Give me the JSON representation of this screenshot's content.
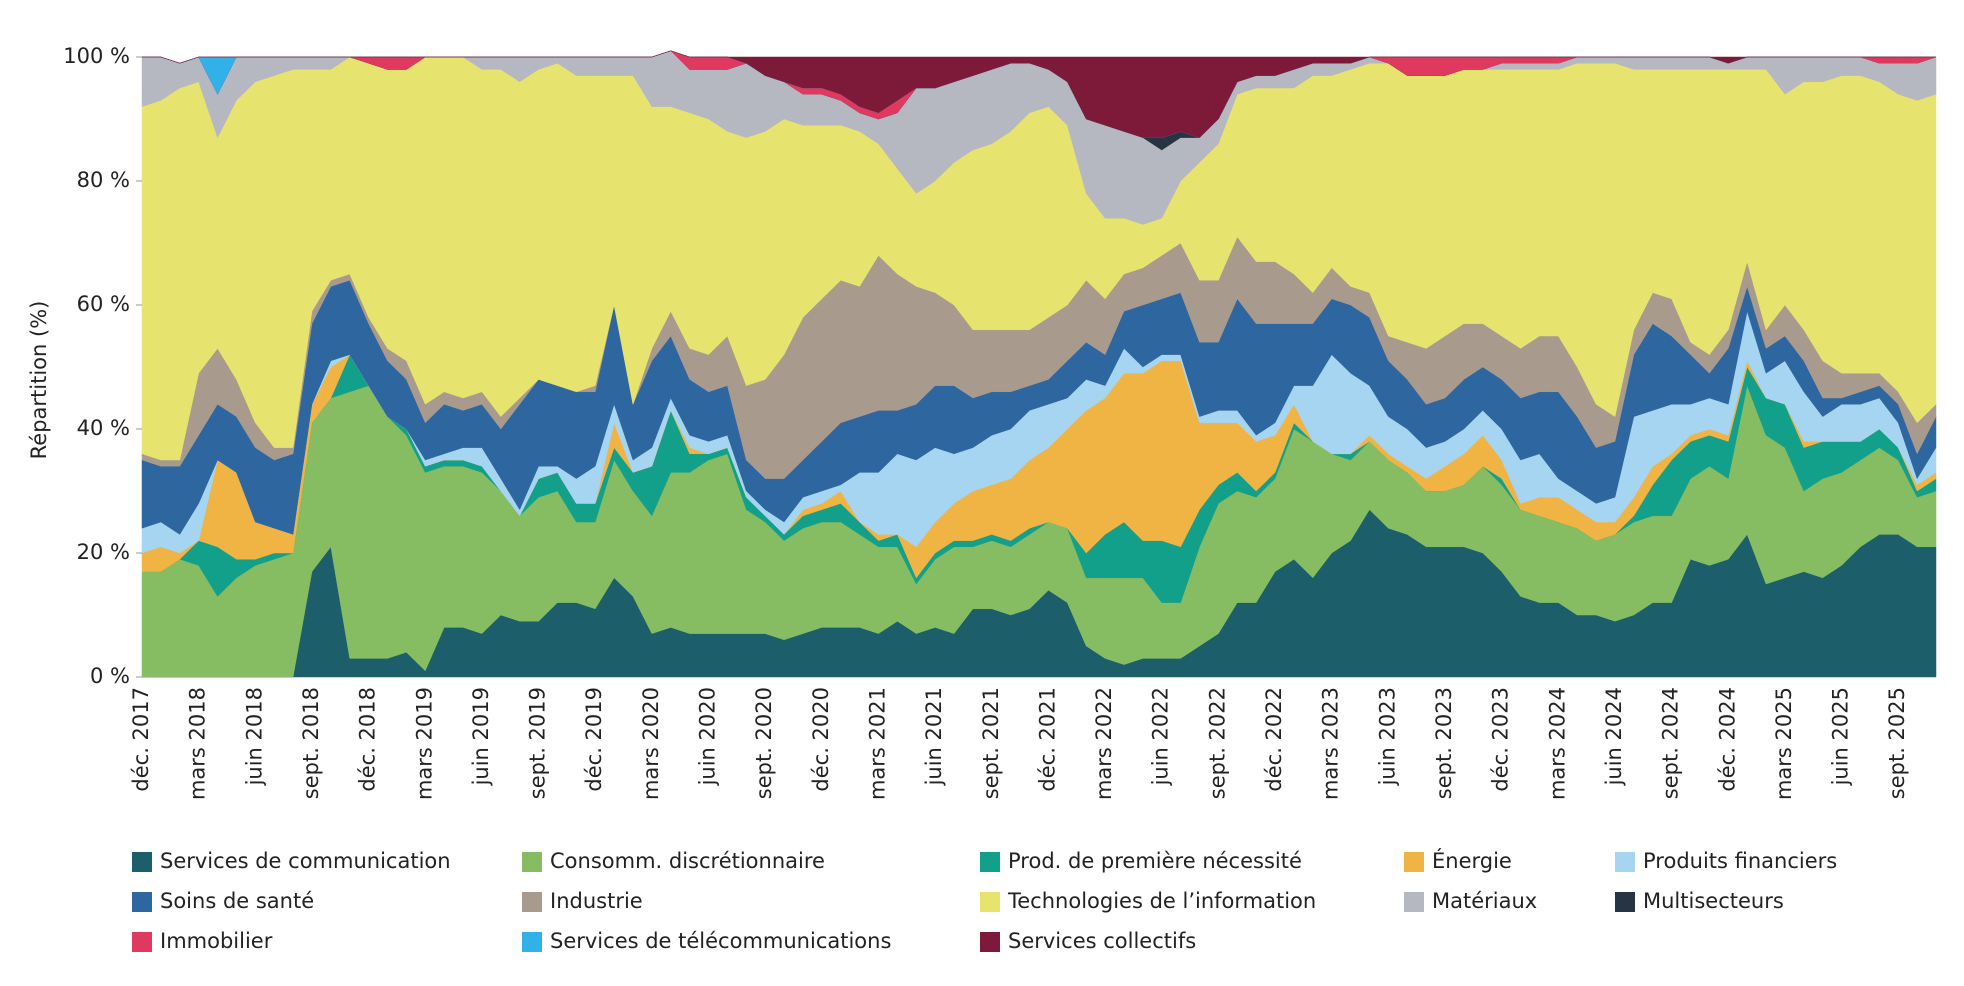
{
  "chart_data": {
    "type": "stacked_area",
    "y_label": "Répartition (%)",
    "categories": [
      "déc. 2017",
      null,
      null,
      "mars 2018",
      null,
      null,
      "juin 2018",
      null,
      null,
      "sept. 2018",
      null,
      null,
      "déc. 2018",
      null,
      null,
      "mars 2019",
      null,
      null,
      "juin 2019",
      null,
      null,
      "sept. 2019",
      null,
      null,
      "déc. 2019",
      null,
      null,
      "mars 2020",
      null,
      null,
      "juin 2020",
      null,
      null,
      "sept. 2020",
      null,
      null,
      "déc. 2020",
      null,
      null,
      "mars 2021",
      null,
      null,
      "juin 2021",
      null,
      null,
      "sept. 2021",
      null,
      null,
      "déc. 2021",
      null,
      null,
      "mars 2022",
      null,
      null,
      "juin 2022",
      null,
      null,
      "sept. 2022",
      null,
      null,
      "déc. 2022",
      null,
      null,
      "mars 2023",
      null,
      null,
      "juin 2023",
      null,
      null,
      "sept. 2023",
      null,
      null,
      "déc. 2023",
      null,
      null,
      "mars 2024",
      null,
      null,
      "juin 2024",
      null,
      null,
      "sept. 2024",
      null,
      null,
      "déc. 2024",
      null,
      null,
      "mars 2025",
      null,
      null,
      "juin 2025",
      null,
      null,
      "sept. 2025",
      null,
      null
    ],
    "ylim": [
      0,
      100
    ],
    "yticks": [
      {
        "value": 0,
        "label": "0 %"
      },
      {
        "value": 20,
        "label": "20 %"
      },
      {
        "value": 40,
        "label": "40 %"
      },
      {
        "value": 60,
        "label": "60 %"
      },
      {
        "value": 80,
        "label": "80 %"
      },
      {
        "value": 100,
        "label": "100 %"
      }
    ],
    "legend_columns": 5,
    "series": [
      {
        "name": "Services de communication",
        "color": "#1c5f6b",
        "values": [
          0,
          0,
          0,
          0,
          0,
          0,
          0,
          0,
          0,
          17,
          21,
          3,
          3,
          3,
          4,
          1,
          8,
          8,
          7,
          10,
          9,
          9,
          12,
          12,
          11,
          16,
          13,
          7,
          8,
          7,
          7,
          7,
          7,
          7,
          6,
          7,
          8,
          8,
          8,
          7,
          9,
          7,
          8,
          7,
          11,
          11,
          10,
          11,
          14,
          12,
          5,
          3,
          2,
          3,
          3,
          3,
          5,
          7,
          12,
          12,
          17,
          19,
          16,
          20,
          22,
          27,
          24,
          23,
          21,
          21,
          21,
          20,
          17,
          13,
          12,
          12,
          10,
          10,
          9,
          10,
          12,
          12,
          19,
          18,
          19,
          23,
          15,
          16,
          17,
          16,
          18,
          21,
          23,
          23,
          21,
          21
        ]
      },
      {
        "name": "Consomm. discrétionnaire",
        "color": "#86bc62",
        "values": [
          17,
          17,
          19,
          18,
          13,
          16,
          18,
          19,
          20,
          24,
          24,
          43,
          44,
          39,
          35,
          32,
          26,
          26,
          26,
          20,
          17,
          20,
          18,
          13,
          14,
          19,
          17,
          19,
          25,
          26,
          28,
          29,
          20,
          18,
          16,
          17,
          17,
          17,
          15,
          14,
          12,
          8,
          11,
          14,
          10,
          11,
          11,
          12,
          11,
          12,
          11,
          13,
          14,
          13,
          9,
          9,
          16,
          21,
          18,
          17,
          15,
          21,
          22,
          16,
          13,
          11,
          11,
          10,
          9,
          9,
          10,
          14,
          14,
          14,
          14,
          13,
          14,
          12,
          14,
          15,
          14,
          14,
          13,
          16,
          13,
          24,
          24,
          21,
          13,
          16,
          15,
          14,
          14,
          12,
          8,
          9
        ]
      },
      {
        "name": "Prod. de première nécessité",
        "color": "#13a08a",
        "values": [
          0,
          0,
          0,
          4,
          8,
          3,
          1,
          1,
          0,
          0,
          0,
          6,
          0,
          0,
          1,
          1,
          1,
          1,
          1,
          0,
          0,
          3,
          3,
          3,
          3,
          2,
          3,
          8,
          10,
          3,
          1,
          1,
          2,
          1,
          1,
          2,
          2,
          3,
          2,
          1,
          2,
          1,
          1,
          1,
          1,
          1,
          1,
          1,
          0,
          0,
          4,
          7,
          9,
          6,
          10,
          9,
          6,
          3,
          3,
          1,
          1,
          1,
          0,
          0,
          1,
          0,
          0,
          0,
          0,
          0,
          0,
          0,
          1,
          0,
          0,
          0,
          0,
          0,
          0,
          1,
          5,
          9,
          6,
          5,
          6,
          3,
          6,
          7,
          7,
          6,
          5,
          3,
          3,
          2,
          1,
          2
        ]
      },
      {
        "name": "Énergie",
        "color": "#f0b445",
        "values": [
          3,
          4,
          1,
          0,
          14,
          14,
          6,
          4,
          3,
          3,
          5,
          0,
          0,
          0,
          0,
          0,
          0,
          0,
          0,
          0,
          0,
          0,
          0,
          0,
          0,
          4,
          0,
          0,
          0,
          1,
          0,
          0,
          0,
          0,
          0,
          1,
          1,
          2,
          0,
          1,
          0,
          5,
          5,
          6,
          8,
          8,
          10,
          11,
          12,
          16,
          23,
          22,
          24,
          27,
          29,
          30,
          14,
          10,
          8,
          8,
          6,
          3,
          0,
          0,
          0,
          1,
          1,
          1,
          2,
          4,
          5,
          5,
          3,
          1,
          3,
          4,
          3,
          3,
          2,
          3,
          3,
          1,
          1,
          1,
          1,
          1,
          0,
          0,
          1,
          0,
          0,
          0,
          0,
          0,
          1,
          1
        ]
      },
      {
        "name": "Produits financiers",
        "color": "#a5d5f1",
        "values": [
          4,
          4,
          3,
          6,
          0,
          0,
          0,
          0,
          0,
          0,
          1,
          0,
          0,
          0,
          0,
          1,
          1,
          2,
          3,
          2,
          1,
          2,
          1,
          4,
          6,
          3,
          2,
          3,
          2,
          2,
          2,
          2,
          1,
          1,
          2,
          2,
          2,
          1,
          8,
          10,
          13,
          14,
          12,
          8,
          7,
          8,
          8,
          8,
          7,
          5,
          5,
          2,
          4,
          1,
          1,
          1,
          1,
          2,
          2,
          1,
          2,
          3,
          9,
          16,
          13,
          8,
          6,
          6,
          5,
          4,
          4,
          4,
          5,
          7,
          7,
          3,
          3,
          3,
          4,
          13,
          9,
          8,
          5,
          5,
          5,
          8,
          4,
          7,
          8,
          4,
          6,
          6,
          5,
          4,
          1,
          4
        ]
      },
      {
        "name": "Soins de santé",
        "color": "#2e66a0",
        "values": [
          11,
          9,
          11,
          11,
          9,
          9,
          12,
          11,
          13,
          13,
          12,
          12,
          10,
          9,
          8,
          6,
          8,
          6,
          7,
          8,
          17,
          14,
          13,
          14,
          12,
          16,
          9,
          14,
          10,
          9,
          8,
          8,
          5,
          5,
          7,
          6,
          8,
          10,
          9,
          10,
          7,
          9,
          10,
          11,
          8,
          7,
          6,
          4,
          4,
          6,
          6,
          5,
          6,
          10,
          9,
          10,
          12,
          11,
          18,
          18,
          16,
          10,
          10,
          9,
          11,
          11,
          9,
          8,
          7,
          7,
          8,
          7,
          8,
          10,
          10,
          14,
          12,
          9,
          9,
          10,
          14,
          11,
          8,
          4,
          9,
          4,
          4,
          4,
          5,
          3,
          1,
          2,
          2,
          3,
          4,
          5
        ]
      },
      {
        "name": "Industrie",
        "color": "#a89a8d",
        "values": [
          1,
          1,
          1,
          10,
          9,
          6,
          4,
          2,
          1,
          2,
          1,
          1,
          1,
          2,
          3,
          3,
          2,
          2,
          2,
          2,
          1,
          0,
          0,
          0,
          1,
          0,
          0,
          2,
          4,
          5,
          6,
          8,
          12,
          16,
          20,
          23,
          23,
          23,
          21,
          25,
          22,
          19,
          15,
          13,
          11,
          10,
          10,
          9,
          10,
          9,
          10,
          9,
          6,
          6,
          7,
          8,
          10,
          10,
          10,
          10,
          10,
          8,
          5,
          5,
          3,
          4,
          4,
          6,
          9,
          10,
          9,
          7,
          7,
          8,
          9,
          9,
          8,
          7,
          4,
          4,
          5,
          6,
          2,
          3,
          3,
          4,
          3,
          5,
          5,
          6,
          4,
          3,
          2,
          2,
          5,
          2
        ]
      },
      {
        "name": "Technologies de l’information",
        "color": "#e6e46e",
        "values": [
          56,
          58,
          60,
          47,
          34,
          45,
          55,
          60,
          61,
          39,
          34,
          35,
          41,
          45,
          47,
          56,
          54,
          55,
          52,
          56,
          51,
          50,
          52,
          51,
          50,
          37,
          53,
          39,
          33,
          38,
          38,
          33,
          40,
          40,
          38,
          31,
          28,
          25,
          25,
          18,
          17,
          15,
          18,
          23,
          29,
          30,
          32,
          35,
          34,
          29,
          14,
          13,
          9,
          7,
          6,
          10,
          19,
          22,
          23,
          28,
          28,
          30,
          35,
          31,
          35,
          37,
          44,
          43,
          44,
          42,
          41,
          41,
          43,
          45,
          43,
          43,
          49,
          55,
          57,
          42,
          36,
          37,
          44,
          46,
          42,
          31,
          42,
          34,
          40,
          45,
          48,
          48,
          47,
          48,
          52,
          50
        ]
      },
      {
        "name": "Matériaux",
        "color": "#b5b8c0",
        "values": [
          8,
          7,
          4,
          4,
          7,
          7,
          4,
          3,
          2,
          2,
          2,
          0,
          0,
          0,
          0,
          0,
          0,
          0,
          2,
          2,
          4,
          2,
          1,
          3,
          3,
          3,
          3,
          8,
          9,
          7,
          8,
          10,
          12,
          9,
          6,
          5,
          5,
          4,
          3,
          4,
          9,
          17,
          15,
          13,
          12,
          12,
          11,
          8,
          6,
          7,
          12,
          15,
          14,
          14,
          11,
          7,
          4,
          4,
          2,
          2,
          2,
          3,
          2,
          2,
          1,
          1,
          0,
          0,
          0,
          0,
          0,
          0,
          1,
          1,
          1,
          1,
          1,
          1,
          1,
          2,
          2,
          2,
          2,
          2,
          1,
          2,
          2,
          6,
          4,
          4,
          3,
          3,
          3,
          5,
          6,
          6
        ]
      },
      {
        "name": "Multisecteurs",
        "color": "#263444",
        "values": [
          0,
          0,
          0,
          0,
          0,
          0,
          0,
          0,
          0,
          0,
          0,
          0,
          0,
          0,
          0,
          0,
          0,
          0,
          0,
          0,
          0,
          0,
          0,
          0,
          0,
          0,
          0,
          0,
          0,
          0,
          0,
          0,
          0,
          0,
          0,
          0,
          0,
          0,
          0,
          0,
          0,
          0,
          0,
          0,
          0,
          0,
          0,
          0,
          0,
          0,
          0,
          0,
          0,
          0,
          2,
          1,
          0,
          0,
          0,
          0,
          0,
          0,
          0,
          0,
          0,
          0,
          0,
          0,
          0,
          0,
          0,
          0,
          0,
          0,
          0,
          0,
          0,
          0,
          0,
          0,
          0,
          0,
          0,
          0,
          0,
          0,
          0,
          0,
          0,
          0,
          0,
          0,
          0,
          0,
          0,
          0
        ]
      },
      {
        "name": "Immobilier",
        "color": "#e0395f",
        "values": [
          0,
          0,
          0,
          0,
          0,
          0,
          0,
          0,
          0,
          0,
          0,
          0,
          1,
          2,
          2,
          0,
          0,
          0,
          0,
          0,
          0,
          0,
          0,
          0,
          0,
          0,
          0,
          0,
          0,
          2,
          2,
          2,
          0,
          0,
          0,
          1,
          1,
          1,
          1,
          1,
          2,
          0,
          0,
          0,
          0,
          0,
          0,
          0,
          0,
          0,
          0,
          0,
          0,
          0,
          0,
          0,
          0,
          0,
          0,
          0,
          0,
          0,
          0,
          0,
          0,
          0,
          1,
          3,
          3,
          3,
          2,
          2,
          1,
          1,
          1,
          1,
          0,
          0,
          0,
          0,
          0,
          0,
          0,
          0,
          0,
          0,
          0,
          0,
          0,
          0,
          0,
          0,
          1,
          1,
          1,
          0
        ]
      },
      {
        "name": "Services de télécommunications",
        "color": "#30b2e8",
        "values": [
          0,
          0,
          0,
          0,
          6,
          0,
          0,
          0,
          0,
          0,
          0,
          0,
          0,
          0,
          0,
          0,
          0,
          0,
          0,
          0,
          0,
          0,
          0,
          0,
          0,
          0,
          0,
          0,
          0,
          0,
          0,
          0,
          0,
          0,
          0,
          0,
          0,
          0,
          0,
          0,
          0,
          0,
          0,
          0,
          0,
          0,
          0,
          0,
          0,
          0,
          0,
          0,
          0,
          0,
          0,
          0,
          0,
          0,
          0,
          0,
          0,
          0,
          0,
          0,
          0,
          0,
          0,
          0,
          0,
          0,
          0,
          0,
          0,
          0,
          0,
          0,
          0,
          0,
          0,
          0,
          0,
          0,
          0,
          0,
          0,
          0,
          0,
          0,
          0,
          0,
          0,
          0,
          0,
          0,
          0,
          0
        ]
      },
      {
        "name": "Services collectifs",
        "color": "#7d1a3a",
        "values": [
          0,
          0,
          0,
          0,
          0,
          0,
          0,
          0,
          0,
          0,
          0,
          0,
          0,
          0,
          0,
          0,
          0,
          0,
          0,
          0,
          0,
          0,
          0,
          0,
          0,
          0,
          0,
          0,
          0,
          0,
          0,
          0,
          1,
          3,
          4,
          5,
          5,
          6,
          8,
          9,
          7,
          5,
          5,
          4,
          3,
          2,
          1,
          1,
          2,
          4,
          10,
          11,
          12,
          13,
          13,
          12,
          13,
          10,
          4,
          3,
          3,
          2,
          1,
          1,
          1,
          0,
          0,
          0,
          0,
          0,
          0,
          0,
          0,
          0,
          0,
          0,
          0,
          0,
          0,
          0,
          0,
          0,
          0,
          0,
          1,
          0,
          0,
          0,
          0,
          0,
          0,
          0,
          0,
          0,
          0,
          0
        ]
      }
    ]
  }
}
